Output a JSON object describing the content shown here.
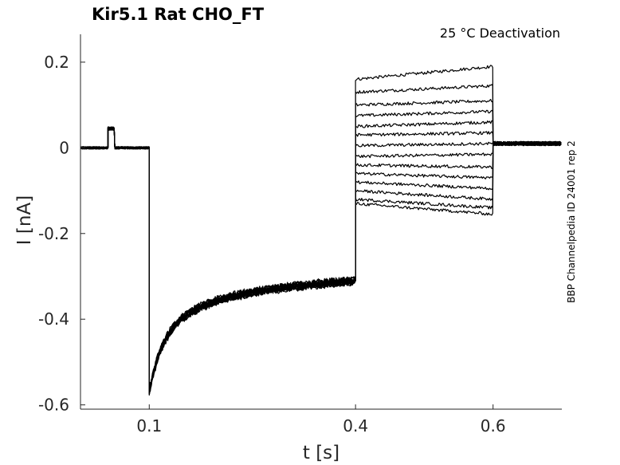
{
  "chart_data": {
    "type": "line",
    "title": "Kir5.1  Rat  CHO_FT",
    "annotation": "25 °C  Deactivation",
    "side_label": "BBP Channelpedia ID 24001 rep 2",
    "xlabel": "t [s]",
    "ylabel": "I [nA]",
    "xlim": [
      0,
      0.7
    ],
    "ylim": [
      -0.61,
      0.265
    ],
    "xticks": [
      {
        "value": 0.1,
        "label": "0.1"
      },
      {
        "value": 0.4,
        "label": "0.4"
      },
      {
        "value": 0.6,
        "label": "0.6"
      }
    ],
    "yticks": [
      {
        "value": 0.2,
        "label": "0.2"
      },
      {
        "value": 0,
        "label": "0"
      },
      {
        "value": -0.2,
        "label": "-0.2"
      },
      {
        "value": -0.4,
        "label": "-0.4"
      },
      {
        "value": -0.6,
        "label": "-0.6"
      }
    ],
    "grid": false,
    "line_color": "#000000",
    "protocol": {
      "baseline": 0.0,
      "pulse": {
        "start": 0.04,
        "end": 0.05,
        "value": 0.045
      },
      "hyperpolarization": {
        "start": 0.1,
        "end": 0.4,
        "peak": -0.535,
        "end_value": -0.31
      },
      "test_step": {
        "start": 0.4,
        "end": 0.6
      },
      "tail_value": 0.01
    },
    "series": [
      {
        "step_start": 0.16,
        "step_end": 0.19
      },
      {
        "step_start": 0.13,
        "step_end": 0.145
      },
      {
        "step_start": 0.1,
        "step_end": 0.11
      },
      {
        "step_start": 0.075,
        "step_end": 0.085
      },
      {
        "step_start": 0.05,
        "step_end": 0.06
      },
      {
        "step_start": 0.03,
        "step_end": 0.035
      },
      {
        "step_start": 0.005,
        "step_end": 0.01
      },
      {
        "step_start": -0.02,
        "step_end": -0.015
      },
      {
        "step_start": -0.04,
        "step_end": -0.045
      },
      {
        "step_start": -0.06,
        "step_end": -0.07
      },
      {
        "step_start": -0.08,
        "step_end": -0.095
      },
      {
        "step_start": -0.1,
        "step_end": -0.12
      },
      {
        "step_start": -0.12,
        "step_end": -0.14
      },
      {
        "step_start": -0.13,
        "step_end": -0.155
      }
    ]
  }
}
